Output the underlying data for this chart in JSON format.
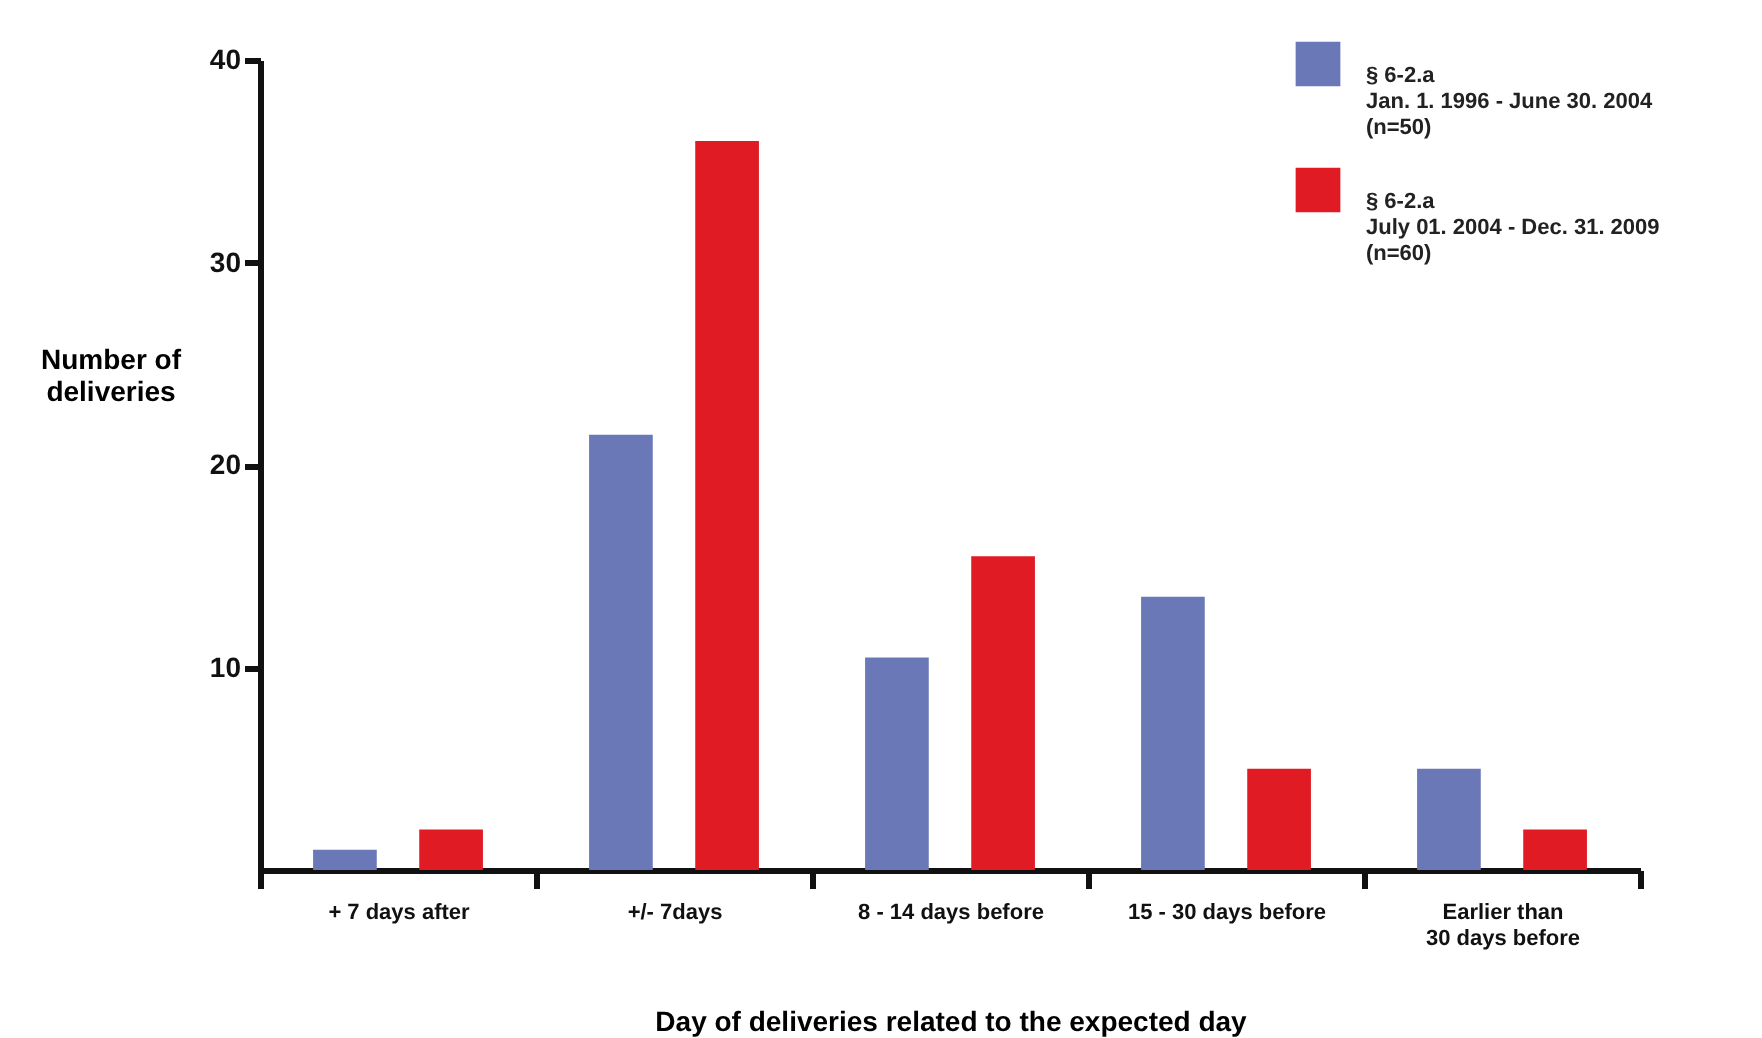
{
  "chart_data": {
    "type": "bar",
    "xlabel": "Day of deliveries related to the expected day",
    "ylabel": "Number of\ndeliveries",
    "categories": [
      "+ 7 days after",
      "+/- 7days",
      "8 - 14 days before",
      "15 - 30 days before",
      "Earlier than\n30 days before"
    ],
    "series": [
      {
        "name": "§ 6-2.a\nJan. 1. 1996 - June 30. 2004\n(n=50)",
        "color": "#6a78b8",
        "values": [
          1,
          21.5,
          10.5,
          13.5,
          5
        ]
      },
      {
        "name": "§ 6-2.a\nJuly 01. 2004 - Dec. 31. 2009\n(n=60)",
        "color": "#e01b24",
        "values": [
          2,
          36,
          15.5,
          5,
          2
        ]
      }
    ],
    "ylim": [
      0,
      40
    ],
    "yticks": [
      10,
      20,
      30,
      40
    ],
    "grid": false,
    "legend": "top right"
  }
}
